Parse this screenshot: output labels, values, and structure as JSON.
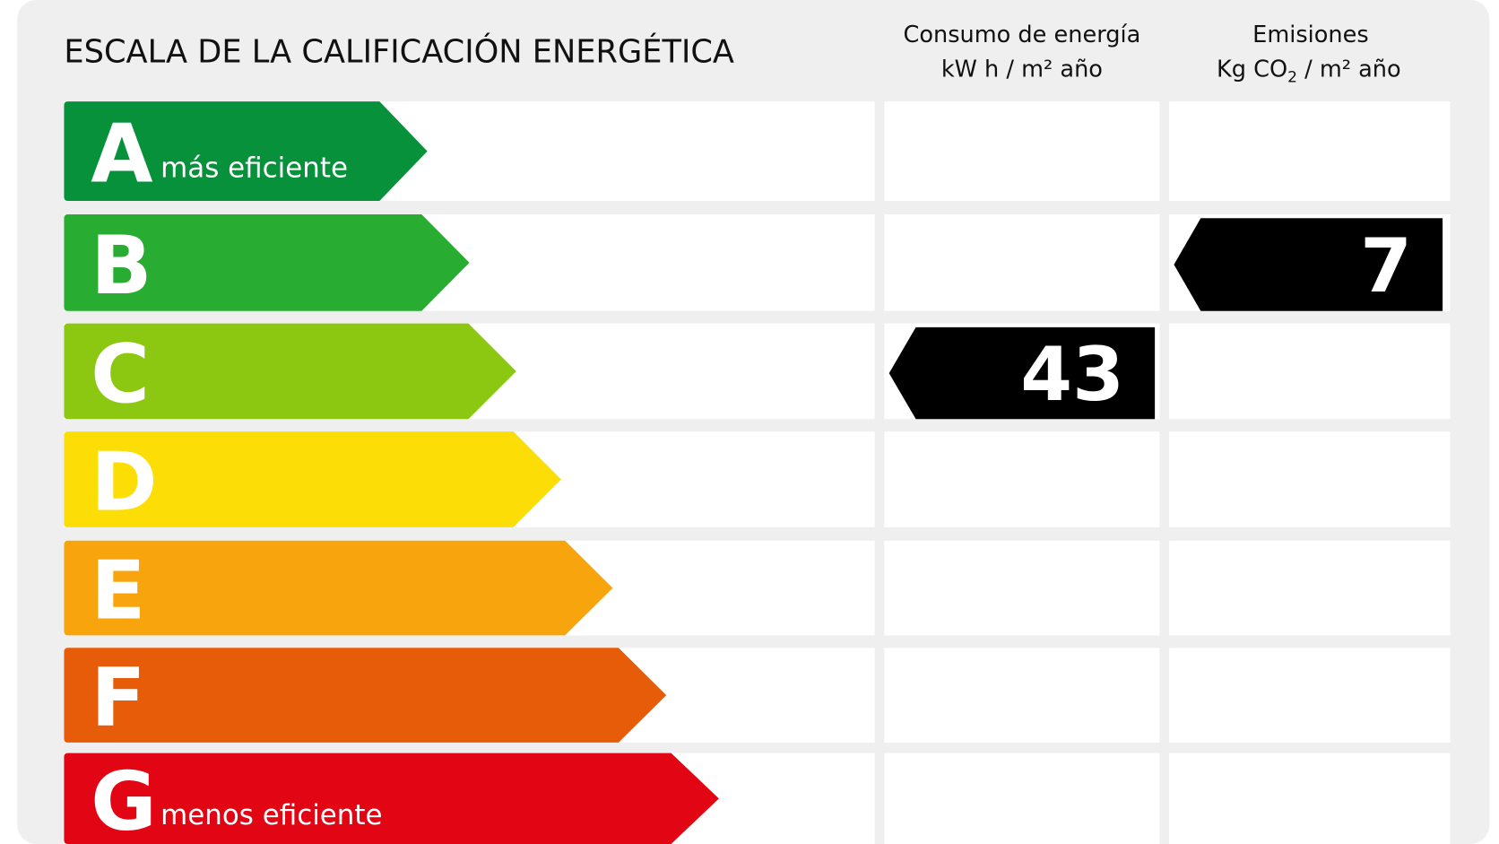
{
  "header": {
    "title": "ESCALA DE LA CALIFICACIÓN ENERGÉTICA",
    "consumption": {
      "line1": "Consumo de energía",
      "line2": "kW h / m² año"
    },
    "emissions": {
      "line1": "Emisiones",
      "line2_start": "Kg CO",
      "line2_sub": "2",
      "line2_end": " / m² año"
    }
  },
  "rows": [
    {
      "letter": "A",
      "note": "más eficiente",
      "color": "#07913b"
    },
    {
      "letter": "B",
      "color": "#28ad32"
    },
    {
      "letter": "C",
      "color": "#8cc812"
    },
    {
      "letter": "D",
      "color": "#fddd06"
    },
    {
      "letter": "E",
      "color": "#f8a40c"
    },
    {
      "letter": "F",
      "color": "#e65c08"
    },
    {
      "letter": "G",
      "note": "menos eficiente",
      "color": "#e20514"
    }
  ],
  "indicators": {
    "consumption": {
      "row": 2,
      "value": 43
    },
    "emissions": {
      "row": 1,
      "value": 7
    }
  }
}
